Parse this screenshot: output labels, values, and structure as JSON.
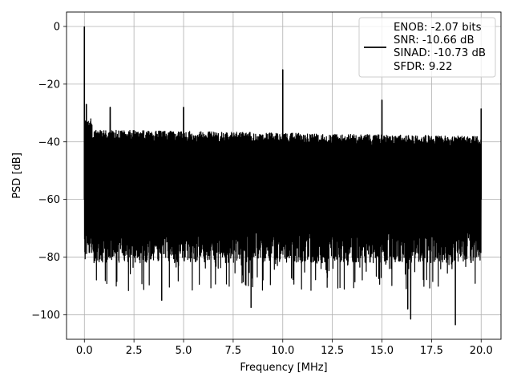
{
  "chart_data": {
    "type": "line",
    "title": "",
    "xlabel": "Frequency [MHz]",
    "ylabel": "PSD [dB]",
    "xlim": [
      -0.9,
      21.0
    ],
    "ylim": [
      -108.5,
      5
    ],
    "grid": true,
    "x_ticks": [
      0.0,
      2.5,
      5.0,
      7.5,
      10.0,
      12.5,
      15.0,
      17.5,
      20.0
    ],
    "x_tick_labels": [
      "0.0",
      "2.5",
      "5.0",
      "7.5",
      "10.0",
      "12.5",
      "15.0",
      "17.5",
      "20.0"
    ],
    "y_ticks": [
      0,
      -20,
      -40,
      -60,
      -80,
      -100
    ],
    "y_tick_labels": [
      "0",
      "−20",
      "−40",
      "−60",
      "−80",
      "−100"
    ],
    "legend": {
      "placement": "top-right",
      "entries": [
        "ENOB: -2.07 bits",
        "SNR: -10.66 dB",
        "SINAD: -10.73 dB",
        "SFDR: 9.22"
      ]
    },
    "series": [
      {
        "color": "#000000",
        "noise_floor_top_db": -36,
        "noise_floor_bottom_db": -80,
        "min_dip_db": -103.5,
        "spikes": [
          {
            "x": 0.0,
            "y": 0.0
          },
          {
            "x": 0.1,
            "y": -27
          },
          {
            "x": 1.3,
            "y": -28
          },
          {
            "x": 5.0,
            "y": -28
          },
          {
            "x": 10.0,
            "y": -15
          },
          {
            "x": 15.0,
            "y": -25.5
          },
          {
            "x": 20.0,
            "y": -28.5
          }
        ],
        "deep_dips": [
          {
            "x": 3.9,
            "y": -95
          },
          {
            "x": 8.4,
            "y": -97.5
          },
          {
            "x": 16.3,
            "y": -98
          },
          {
            "x": 16.45,
            "y": -101.5
          },
          {
            "x": 18.7,
            "y": -103.5
          }
        ]
      }
    ]
  }
}
